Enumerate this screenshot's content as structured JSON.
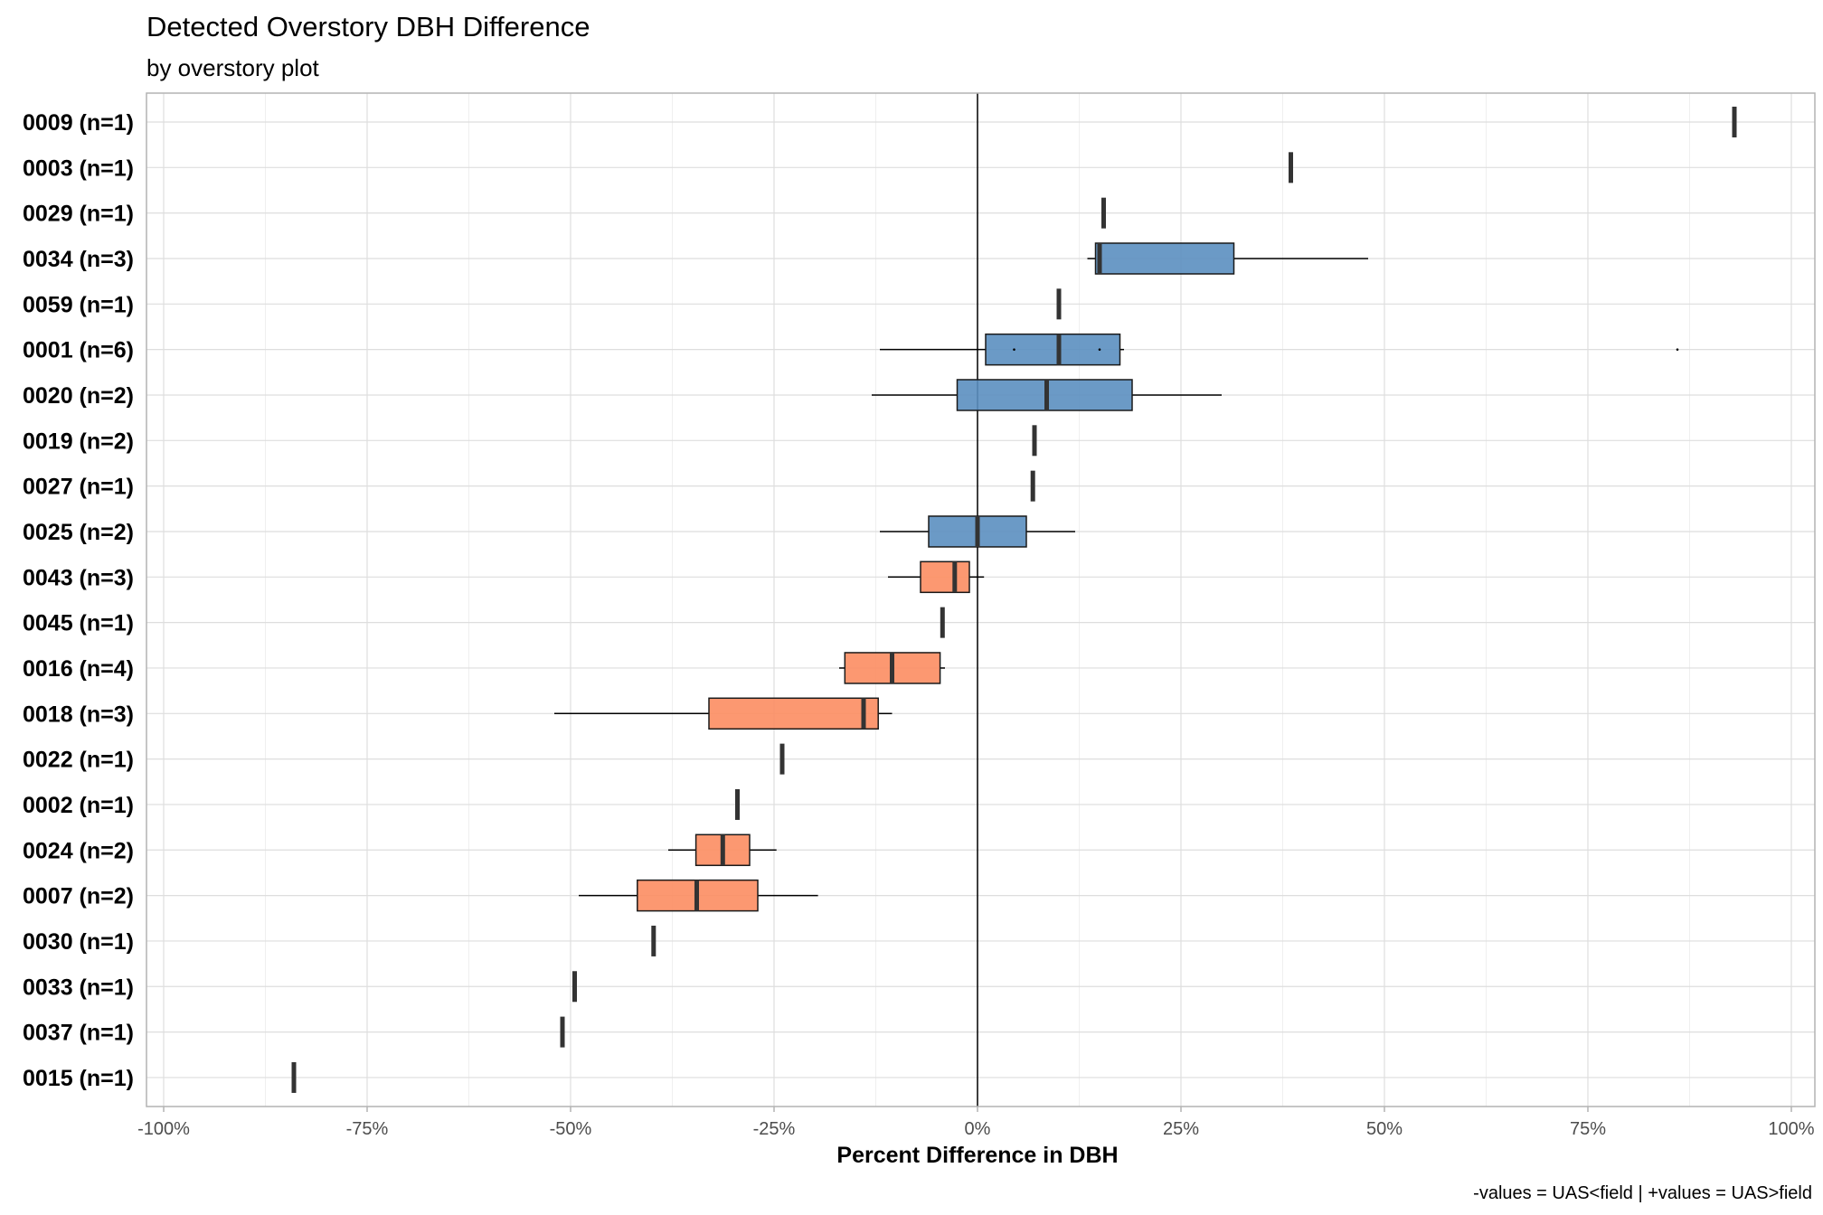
{
  "chart_data": {
    "type": "boxplot",
    "title": "Detected Overstory DBH Difference",
    "subtitle": "by overstory plot",
    "xlabel": "Percent Difference in DBH",
    "ylabel": "",
    "caption": "-values = UAS<field | +values = UAS>field",
    "xlim": [
      -100,
      100
    ],
    "x_ticks": [
      -100,
      -75,
      -50,
      -25,
      0,
      25,
      50,
      75,
      100
    ],
    "x_tick_labels": [
      "-100%",
      "-75%",
      "-50%",
      "-25%",
      "0%",
      "25%",
      "50%",
      "75%",
      "100%"
    ],
    "grid": true,
    "reference_line_x": 0,
    "colors": {
      "positive": "#5b8fc0",
      "negative": "#fc8d62",
      "box_border": "#1a1a1a",
      "median": "#333333",
      "grid_major": "#dedede",
      "grid_minor": "#efefef",
      "panel_border": "#b3b3b3"
    },
    "rows": [
      {
        "label": "0009 (n=1)",
        "median": 93
      },
      {
        "label": "0003 (n=1)",
        "median": 38.5
      },
      {
        "label": "0029 (n=1)",
        "median": 15.5
      },
      {
        "label": "0034 (n=3)",
        "whisker_low": 13.5,
        "q1": 14.5,
        "median": 15,
        "q3": 31.5,
        "whisker_high": 48,
        "sign": "positive"
      },
      {
        "label": "0059 (n=1)",
        "median": 10
      },
      {
        "label": "0001 (n=6)",
        "whisker_low": -12,
        "q1": 1,
        "median": 10,
        "q3": 17.5,
        "whisker_high": 18,
        "outliers": [
          4.5,
          15,
          86
        ],
        "sign": "positive"
      },
      {
        "label": "0020 (n=2)",
        "whisker_low": -13,
        "q1": -2.5,
        "median": 8.5,
        "q3": 19,
        "whisker_high": 30,
        "sign": "positive"
      },
      {
        "label": "0019 (n=2)",
        "median": 7
      },
      {
        "label": "0027 (n=1)",
        "median": 6.8
      },
      {
        "label": "0025 (n=2)",
        "whisker_low": -12,
        "q1": -6,
        "median": 0,
        "q3": 6,
        "whisker_high": 12,
        "sign": "positive"
      },
      {
        "label": "0043 (n=3)",
        "whisker_low": -11,
        "q1": -7,
        "median": -2.8,
        "q3": -1,
        "whisker_high": 0.8,
        "sign": "negative"
      },
      {
        "label": "0045 (n=1)",
        "median": -4.3
      },
      {
        "label": "0016 (n=4)",
        "whisker_low": -17,
        "q1": -16.3,
        "median": -10.5,
        "q3": -4.6,
        "whisker_high": -4,
        "sign": "negative"
      },
      {
        "label": "0018 (n=3)",
        "whisker_low": -52,
        "q1": -33,
        "median": -14,
        "q3": -12.2,
        "whisker_high": -10.5,
        "sign": "negative"
      },
      {
        "label": "0022 (n=1)",
        "median": -24
      },
      {
        "label": "0002 (n=1)",
        "median": -29.5
      },
      {
        "label": "0024 (n=2)",
        "whisker_low": -38,
        "q1": -34.6,
        "median": -31.3,
        "q3": -28,
        "whisker_high": -24.7,
        "sign": "negative"
      },
      {
        "label": "0007 (n=2)",
        "whisker_low": -49,
        "q1": -41.8,
        "median": -34.5,
        "q3": -27,
        "whisker_high": -19.6,
        "sign": "negative"
      },
      {
        "label": "0030 (n=1)",
        "median": -39.8
      },
      {
        "label": "0033 (n=1)",
        "median": -49.5
      },
      {
        "label": "0037 (n=1)",
        "median": -51
      },
      {
        "label": "0015 (n=1)",
        "median": -84
      }
    ]
  }
}
